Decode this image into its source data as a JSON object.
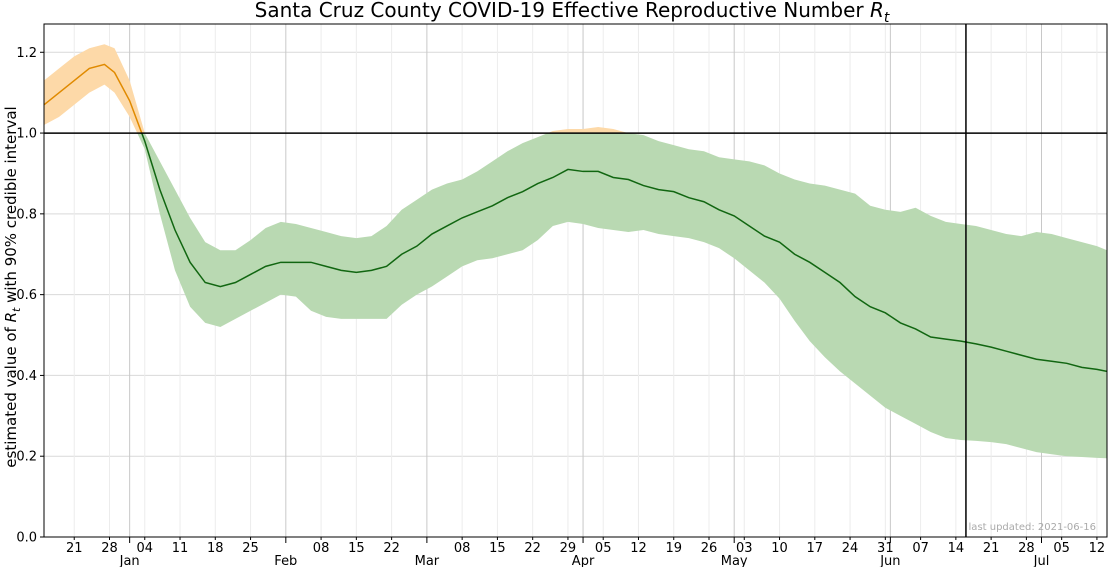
{
  "chart_data": {
    "type": "line",
    "title": "Santa Cruz County COVID-19 Effective Reproductive Number ",
    "title_symbol": "R",
    "title_subscript": "t",
    "ylabel_prefix": "estimated value of ",
    "ylabel_symbol": "R",
    "ylabel_subscript": "t",
    "ylabel_suffix": " with 90% credible interval",
    "ylim": [
      0.0,
      1.27
    ],
    "y_ticks": [
      "0.0",
      "0.2",
      "0.4",
      "0.6",
      "0.8",
      "1.0",
      "1.2"
    ],
    "x_range": [
      "2020-12-15",
      "2021-07-14"
    ],
    "reference_line_y": 1.0,
    "reference_line_x": "2021-06-16",
    "grid": true,
    "minor_ticks": [
      {
        "date": "2020-12-21",
        "label": "21"
      },
      {
        "date": "2020-12-28",
        "label": "28"
      },
      {
        "date": "2021-01-04",
        "label": "04"
      },
      {
        "date": "2021-01-11",
        "label": "11"
      },
      {
        "date": "2021-01-18",
        "label": "18"
      },
      {
        "date": "2021-01-25",
        "label": "25"
      },
      {
        "date": "2021-02-08",
        "label": "08"
      },
      {
        "date": "2021-02-15",
        "label": "15"
      },
      {
        "date": "2021-02-22",
        "label": "22"
      },
      {
        "date": "2021-03-08",
        "label": "08"
      },
      {
        "date": "2021-03-15",
        "label": "15"
      },
      {
        "date": "2021-03-22",
        "label": "22"
      },
      {
        "date": "2021-03-29",
        "label": "29"
      },
      {
        "date": "2021-04-05",
        "label": "05"
      },
      {
        "date": "2021-04-12",
        "label": "12"
      },
      {
        "date": "2021-04-19",
        "label": "19"
      },
      {
        "date": "2021-04-26",
        "label": "26"
      },
      {
        "date": "2021-05-03",
        "label": "03"
      },
      {
        "date": "2021-05-10",
        "label": "10"
      },
      {
        "date": "2021-05-17",
        "label": "17"
      },
      {
        "date": "2021-05-24",
        "label": "24"
      },
      {
        "date": "2021-05-31",
        "label": "31"
      },
      {
        "date": "2021-06-07",
        "label": "07"
      },
      {
        "date": "2021-06-14",
        "label": "14"
      },
      {
        "date": "2021-06-21",
        "label": "21"
      },
      {
        "date": "2021-06-28",
        "label": "28"
      },
      {
        "date": "2021-07-05",
        "label": "05"
      },
      {
        "date": "2021-07-12",
        "label": "12"
      }
    ],
    "major_ticks": [
      {
        "date": "2021-01-01",
        "label": "Jan"
      },
      {
        "date": "2021-02-01",
        "label": "Feb"
      },
      {
        "date": "2021-03-01",
        "label": "Mar"
      },
      {
        "date": "2021-04-01",
        "label": "Apr"
      },
      {
        "date": "2021-05-01",
        "label": "May"
      },
      {
        "date": "2021-06-01",
        "label": "Jun"
      },
      {
        "date": "2021-07-01",
        "label": "Jul"
      }
    ],
    "colors": {
      "above_line": "#e08a00",
      "above_band": "#fdd9a8",
      "below_line": "#116611",
      "below_band": "#b9d9b2"
    },
    "series": [
      {
        "x": [
          "2020-12-15",
          "2020-12-18",
          "2020-12-21",
          "2020-12-24",
          "2020-12-27",
          "2020-12-29",
          "2021-01-01",
          "2021-01-04",
          "2021-01-07",
          "2021-01-10",
          "2021-01-13",
          "2021-01-16",
          "2021-01-19",
          "2021-01-22",
          "2021-01-25",
          "2021-01-28",
          "2021-01-31",
          "2021-02-03",
          "2021-02-06",
          "2021-02-09",
          "2021-02-12",
          "2021-02-15",
          "2021-02-18",
          "2021-02-21",
          "2021-02-24",
          "2021-02-27",
          "2021-03-02",
          "2021-03-05",
          "2021-03-08",
          "2021-03-11",
          "2021-03-14",
          "2021-03-17",
          "2021-03-20",
          "2021-03-23",
          "2021-03-26",
          "2021-03-29",
          "2021-04-01",
          "2021-04-04",
          "2021-04-07",
          "2021-04-10",
          "2021-04-13",
          "2021-04-16",
          "2021-04-19",
          "2021-04-22",
          "2021-04-25",
          "2021-04-28",
          "2021-05-01",
          "2021-05-04",
          "2021-05-07",
          "2021-05-10",
          "2021-05-13",
          "2021-05-16",
          "2021-05-19",
          "2021-05-22",
          "2021-05-25",
          "2021-05-28",
          "2021-05-31",
          "2021-06-03",
          "2021-06-06",
          "2021-06-09",
          "2021-06-12",
          "2021-06-15",
          "2021-06-18",
          "2021-06-21",
          "2021-06-24",
          "2021-06-27",
          "2021-06-30",
          "2021-07-03",
          "2021-07-06",
          "2021-07-09",
          "2021-07-12",
          "2021-07-14"
        ],
        "median": [
          1.07,
          1.1,
          1.13,
          1.16,
          1.17,
          1.15,
          1.08,
          0.98,
          0.86,
          0.76,
          0.68,
          0.63,
          0.62,
          0.63,
          0.65,
          0.67,
          0.68,
          0.68,
          0.68,
          0.67,
          0.66,
          0.655,
          0.66,
          0.67,
          0.7,
          0.72,
          0.75,
          0.77,
          0.79,
          0.805,
          0.82,
          0.84,
          0.855,
          0.875,
          0.89,
          0.91,
          0.905,
          0.905,
          0.89,
          0.885,
          0.87,
          0.86,
          0.855,
          0.84,
          0.83,
          0.81,
          0.795,
          0.77,
          0.745,
          0.73,
          0.7,
          0.68,
          0.655,
          0.63,
          0.595,
          0.57,
          0.555,
          0.53,
          0.515,
          0.495,
          0.49,
          0.485,
          0.478,
          0.47,
          0.46,
          0.45,
          0.44,
          0.435,
          0.43,
          0.42,
          0.415,
          0.41
        ],
        "lower": [
          1.02,
          1.04,
          1.07,
          1.1,
          1.12,
          1.1,
          1.04,
          0.96,
          0.8,
          0.66,
          0.57,
          0.53,
          0.52,
          0.54,
          0.56,
          0.58,
          0.6,
          0.595,
          0.56,
          0.545,
          0.54,
          0.54,
          0.54,
          0.54,
          0.575,
          0.6,
          0.62,
          0.645,
          0.67,
          0.685,
          0.69,
          0.7,
          0.71,
          0.735,
          0.77,
          0.78,
          0.775,
          0.765,
          0.76,
          0.755,
          0.76,
          0.75,
          0.745,
          0.74,
          0.73,
          0.715,
          0.69,
          0.66,
          0.63,
          0.59,
          0.535,
          0.485,
          0.445,
          0.41,
          0.38,
          0.35,
          0.32,
          0.3,
          0.28,
          0.26,
          0.245,
          0.24,
          0.238,
          0.235,
          0.23,
          0.22,
          0.21,
          0.205,
          0.2,
          0.198,
          0.196,
          0.195
        ],
        "upper": [
          1.13,
          1.16,
          1.19,
          1.21,
          1.22,
          1.21,
          1.13,
          1.0,
          0.93,
          0.86,
          0.79,
          0.73,
          0.71,
          0.71,
          0.735,
          0.765,
          0.78,
          0.775,
          0.765,
          0.755,
          0.745,
          0.74,
          0.745,
          0.77,
          0.81,
          0.835,
          0.86,
          0.875,
          0.885,
          0.905,
          0.93,
          0.955,
          0.975,
          0.99,
          1.005,
          1.01,
          1.01,
          1.015,
          1.01,
          1.0,
          0.995,
          0.98,
          0.97,
          0.96,
          0.955,
          0.94,
          0.935,
          0.93,
          0.92,
          0.9,
          0.885,
          0.875,
          0.87,
          0.86,
          0.85,
          0.82,
          0.81,
          0.805,
          0.815,
          0.795,
          0.78,
          0.775,
          0.77,
          0.76,
          0.75,
          0.745,
          0.755,
          0.75,
          0.74,
          0.73,
          0.72,
          0.71
        ]
      }
    ]
  },
  "footnote": "last updated: 2021-06-16"
}
